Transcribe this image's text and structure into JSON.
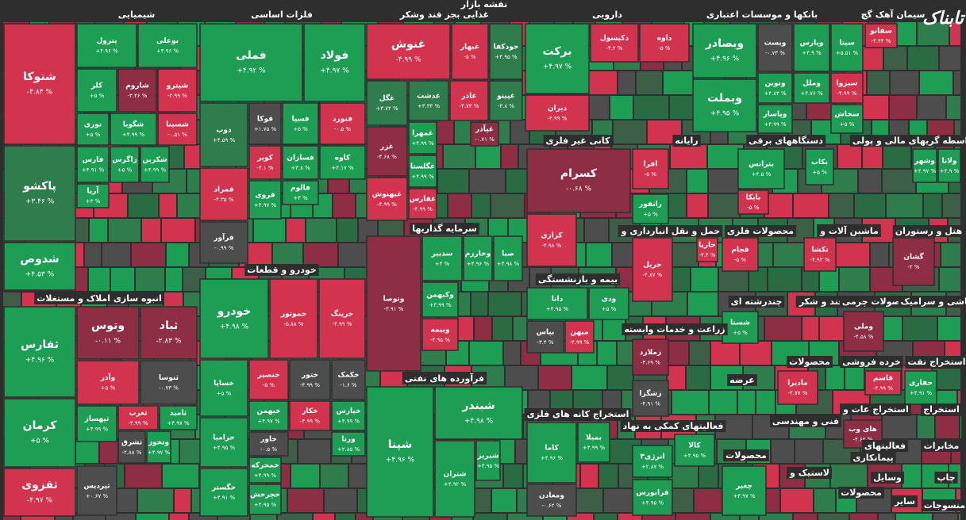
{
  "title": "نقشه بازار",
  "logo": "تابناک",
  "sectors": [
    {
      "name": "شیمیایی",
      "tiles": [
        {
          "name": "شتوکا",
          "change": "-۴.۸۴ %",
          "color": "#d2344f"
        },
        {
          "name": "پاکشو",
          "change": "+۳.۴۶ %",
          "color": "#2f7d4c"
        },
        {
          "name": "شدوص",
          "change": "+۴.۵۳ %",
          "color": "#1e9e55"
        },
        {
          "name": "پترول",
          "change": "+۴.۹۶ %",
          "color": "#1e9e55"
        },
        {
          "name": "بوعلی",
          "change": "+۴.۹۶ %",
          "color": "#1e9e55"
        },
        {
          "name": "کلر",
          "change": "+۵ %",
          "color": "#1e9e55"
        },
        {
          "name": "شاروم",
          "change": "-۳.۴۶ %",
          "color": "#8e2e45"
        },
        {
          "name": "شپترو",
          "change": "-۲.۹۹ %",
          "color": "#d2344f"
        },
        {
          "name": "نوری",
          "change": "+۵ %",
          "color": "#1e9e55"
        },
        {
          "name": "شگویا",
          "change": "+۴.۹۹ %",
          "color": "#1e9e55"
        },
        {
          "name": "شسینا",
          "change": "-۰.۵۱ %",
          "color": "#d2344f"
        },
        {
          "name": "فارس",
          "change": "+۴.۹۱ %",
          "color": "#1e9e55"
        },
        {
          "name": "زاگرس",
          "change": "+۵ %",
          "color": "#1e9e55"
        },
        {
          "name": "شکربن",
          "change": "+۴.۹۹ %",
          "color": "#1e9e55"
        },
        {
          "name": "آریا",
          "change": "+۳ %",
          "color": "#1e9e55"
        }
      ]
    },
    {
      "name": "انبوه سازی املاک و مستغلات",
      "tiles": [
        {
          "name": "ثفارس",
          "change": "+۴.۹۶ %",
          "color": "#1e9e55"
        },
        {
          "name": "کرمان",
          "change": "+۵ %",
          "color": "#1e9e55"
        },
        {
          "name": "ثقزوی",
          "change": "-۴.۹۷ %",
          "color": "#d2344f"
        },
        {
          "name": "وتوس",
          "change": "-۰.۱۱ %",
          "color": "#8e2e45"
        },
        {
          "name": "ثباد",
          "change": "-۲.۸۳ %",
          "color": "#8e2e45"
        },
        {
          "name": "وآذر",
          "change": "+۵ %",
          "color": "#d2344f"
        },
        {
          "name": "ثنوسا",
          "change": "-۰.۷۳ %",
          "color": "#4d4d4d"
        },
        {
          "name": "ثپهساز",
          "change": "+۴.۹۹ %",
          "color": "#1e9e55"
        },
        {
          "name": "ثغرب",
          "change": "-۴.۹۹ %",
          "color": "#d2344f"
        },
        {
          "name": "ثامید",
          "change": "+۴.۹۷ %",
          "color": "#1e9e55"
        },
        {
          "name": "ثشرق",
          "change": "-۲.۸۸ %",
          "color": "#4d4d4d"
        },
        {
          "name": "وتخوز",
          "change": "+۴.۹۷ %",
          "color": "#1e9e55"
        },
        {
          "name": "ثپردیس",
          "change": "+۰.۶۷ %",
          "color": "#4d4d4d"
        }
      ]
    },
    {
      "name": "فلزات اساسی",
      "tiles": [
        {
          "name": "فملی",
          "change": "+۴.۹۲ %",
          "color": "#1e9e55"
        },
        {
          "name": "فولاد",
          "change": "+۴.۹۷ %",
          "color": "#1e9e55"
        },
        {
          "name": "ذوب",
          "change": "+۴.۵۹ %",
          "color": "#2f7d4c"
        },
        {
          "name": "فوکا",
          "change": "+۱.۷۵ %",
          "color": "#4d4d4d"
        },
        {
          "name": "فسپا",
          "change": "+۵ %",
          "color": "#1e9e55"
        },
        {
          "name": "فنورد",
          "change": "-۰.۵ %",
          "color": "#d2344f"
        },
        {
          "name": "کویر",
          "change": "-۴.۱ %",
          "color": "#d2344f"
        },
        {
          "name": "فسازان",
          "change": "+۳.۸ %",
          "color": "#1e9e55"
        },
        {
          "name": "کاوه",
          "change": "+۴.۱۷ %",
          "color": "#1e9e55"
        },
        {
          "name": "فمراد",
          "change": "-۴.۳۵ %",
          "color": "#d2344f"
        },
        {
          "name": "فروی",
          "change": "+۴.۹۷ %",
          "color": "#1e9e55"
        },
        {
          "name": "فالوم",
          "change": "+۳ %",
          "color": "#1e9e55"
        },
        {
          "name": "فرآور",
          "change": "-۰.۹۹ %",
          "color": "#4d4d4d"
        }
      ]
    },
    {
      "name": "خودرو و قطعات",
      "tiles": [
        {
          "name": "خودرو",
          "change": "+۴.۹۸ %",
          "color": "#1e9e55"
        },
        {
          "name": "خموتور",
          "change": "-۵.۸۸ %",
          "color": "#d2344f"
        },
        {
          "name": "خرینگ",
          "change": "-۴.۹۹ %",
          "color": "#d2344f"
        },
        {
          "name": "خساپا",
          "change": "+۵ %",
          "color": "#1e9e55"
        },
        {
          "name": "خنصیر",
          "change": "-۵ %",
          "color": "#d2344f"
        },
        {
          "name": "ختور",
          "change": "-۴.۹۹ %",
          "color": "#4d4d4d"
        },
        {
          "name": "خکمک",
          "change": "-۱.۶ %",
          "color": "#4d4d4d"
        },
        {
          "name": "خبهمن",
          "change": "+۴.۹۷ %",
          "color": "#1e9e55"
        },
        {
          "name": "خکار",
          "change": "-۴.۹۹ %",
          "color": "#d2344f"
        },
        {
          "name": "خپارس",
          "change": "+۴.۹۹ %",
          "color": "#1e9e55"
        },
        {
          "name": "خزامیا",
          "change": "+۴.۹۵ %",
          "color": "#1e9e55"
        },
        {
          "name": "خاور",
          "change": "-۰.۵ %",
          "color": "#4d4d4d"
        },
        {
          "name": "ورنا",
          "change": "+۲.۸۵ %",
          "color": "#1e9e55"
        },
        {
          "name": "خمحرکه",
          "change": "+۴.۹۹ %",
          "color": "#1e9e55"
        },
        {
          "name": "خچرخش",
          "change": "+۴.۹۵ %",
          "color": "#1e9e55"
        },
        {
          "name": "خگستر",
          "change": "+۴.۹۱ %",
          "color": "#1e9e55"
        }
      ]
    },
    {
      "name": "غذایی بجز قند وشکر",
      "tiles": [
        {
          "name": "غنوش",
          "change": "-۴.۹۹ %",
          "color": "#d2344f"
        },
        {
          "name": "غبهار",
          "change": "-۵ %",
          "color": "#d2344f"
        },
        {
          "name": "خودکفا",
          "change": "+۴.۹۵ %",
          "color": "#2f7d4c"
        },
        {
          "name": "غگل",
          "change": "+۳.۷۲ %",
          "color": "#2f7d4c"
        },
        {
          "name": "غدشت",
          "change": "+۳.۳۳ %",
          "color": "#2f7d4c"
        },
        {
          "name": "غاذر",
          "change": "-۴.۷۳ %",
          "color": "#d2344f"
        },
        {
          "name": "غپینو",
          "change": "-۳.۸ %",
          "color": "#2f7d4c"
        },
        {
          "name": "غمهرا",
          "change": "+۴.۹۹ %",
          "color": "#1e9e55"
        },
        {
          "name": "غپآذر",
          "change": "-۰.۷۱ %",
          "color": "#8e2e45"
        },
        {
          "name": "غزر",
          "change": "-۴.۶۸ %",
          "color": "#8e2e45"
        },
        {
          "name": "غگلستا",
          "change": "+۴.۹۹ %",
          "color": "#1e9e55"
        },
        {
          "name": "غبهنوش",
          "change": "-۴.۹۹ %",
          "color": "#d2344f"
        },
        {
          "name": "غفارس",
          "change": "-۴.۹۹ %",
          "color": "#d2344f"
        }
      ]
    },
    {
      "name": "سرمایه گذاریها",
      "tiles": [
        {
          "name": "وتوصا",
          "change": "-۳.۹۱ %",
          "color": "#8e2e45"
        },
        {
          "name": "سدبیر",
          "change": "+۴ %",
          "color": "#1e9e55"
        },
        {
          "name": "وخارزم",
          "change": "+۴.۹۶ %",
          "color": "#1e9e55"
        },
        {
          "name": "صبا",
          "change": "+۴.۹۸ %",
          "color": "#1e9e55"
        },
        {
          "name": "وکبهمن",
          "change": "+۴.۹۹ %",
          "color": "#1e9e55"
        },
        {
          "name": "وبیمه",
          "change": "-۴.۹۵ %",
          "color": "#d2344f"
        }
      ]
    },
    {
      "name": "فرآورده های نفتی",
      "tiles": [
        {
          "name": "شپنا",
          "change": "+۴.۹۶ %",
          "color": "#1e9e55"
        },
        {
          "name": "شبندر",
          "change": "+۴.۹۸ %",
          "color": "#1e9e55"
        },
        {
          "name": "شتران",
          "change": "+۴.۹۲ %",
          "color": "#1e9e55"
        },
        {
          "name": "شبریز",
          "change": "+۴.۹۵ %",
          "color": "#1e9e55"
        }
      ]
    },
    {
      "name": "دارویی",
      "tiles": [
        {
          "name": "برکت",
          "change": "+۴.۹۷ %",
          "color": "#1e9e55"
        },
        {
          "name": "دکپسول",
          "change": "-۴.۲ %",
          "color": "#d2344f"
        },
        {
          "name": "داوه",
          "change": "-۵ %",
          "color": "#d2344f"
        },
        {
          "name": "دیران",
          "change": "-۴.۹۹ %",
          "color": "#d2344f"
        }
      ]
    },
    {
      "name": "کانی غیر فلزی",
      "tiles": [
        {
          "name": "کسرام",
          "change": "-۰.۶۸ %",
          "color": "#8e2e45"
        },
        {
          "name": "کرازی",
          "change": "-۴.۹۸ %",
          "color": "#d2344f"
        }
      ]
    },
    {
      "name": "بیمه و بازنشستگی",
      "tiles": [
        {
          "name": "دانا",
          "change": "+۴.۹۵ %",
          "color": "#1e9e55"
        },
        {
          "name": "ودی",
          "change": "+۵ %",
          "color": "#1e9e55"
        },
        {
          "name": "بپاس",
          "change": "-۳.۴ %",
          "color": "#4d4d4d"
        },
        {
          "name": "میهن",
          "change": "-۴.۹۹ %",
          "color": "#d2344f"
        }
      ]
    },
    {
      "name": "استخراج کانه های فلزی",
      "tiles": [
        {
          "name": "کاما",
          "change": "+۴.۹۶ %",
          "color": "#1e9e55"
        },
        {
          "name": "بمیلا",
          "change": "+۴.۹۹ %",
          "color": "#1e9e55"
        },
        {
          "name": "ومعادن",
          "change": "-۰.۶۲ %",
          "color": "#4d4d4d"
        }
      ]
    },
    {
      "name": "بانکها و موسسات اعتباری",
      "tiles": [
        {
          "name": "وبصادر",
          "change": "+۴.۹۶ %",
          "color": "#1e9e55"
        },
        {
          "name": "وبست",
          "change": "-۰.۷۳ %",
          "color": "#4d4d4d"
        },
        {
          "name": "وپارس",
          "change": "+۴.۹ %",
          "color": "#1e9e55"
        },
        {
          "name": "ونوین",
          "change": "+۴.۸۴ %",
          "color": "#1e9e55"
        },
        {
          "name": "وملل",
          "change": "+۴.۷۶ %",
          "color": "#1e9e55"
        },
        {
          "name": "وبملت",
          "change": "+۴.۹۵ %",
          "color": "#1e9e55"
        },
        {
          "name": "وپاسار",
          "change": "+۴.۹۹ %",
          "color": "#1e9e55"
        }
      ]
    },
    {
      "name": "سیمان آهک گچ",
      "tiles": [
        {
          "name": "سیتا",
          "change": "+۵.۵۱ %",
          "color": "#1e9e55"
        },
        {
          "name": "سفانو",
          "change": "-۳.۴۴ %",
          "color": "#d2344f"
        },
        {
          "name": "سبزوا",
          "change": "-۴.۹۹ %",
          "color": "#d2344f"
        },
        {
          "name": "سخاش",
          "change": "+۵ %",
          "color": "#1e9e55"
        }
      ]
    },
    {
      "name": "رایانه",
      "tiles": [
        {
          "name": "افرا",
          "change": "-۵ %",
          "color": "#d2344f"
        },
        {
          "name": "رانفور",
          "change": "+۵ %",
          "color": "#1e9e55"
        }
      ]
    },
    {
      "name": "دستگاههای برقی",
      "tiles": [
        {
          "name": "بترانس",
          "change": "+۴.۵ %",
          "color": "#1e9e55"
        },
        {
          "name": "بایکا",
          "change": "-۵ %",
          "color": "#d2344f"
        },
        {
          "name": "بکاب",
          "change": "+۵ %",
          "color": "#1e9e55"
        }
      ]
    },
    {
      "name": "واسطه گریهای مالی و پولی",
      "tiles": [
        {
          "name": "وشهر",
          "change": "+۴.۹۷ %",
          "color": "#1e9e55"
        },
        {
          "name": "ولانا",
          "change": "+۴.۹ %",
          "color": "#1e9e55"
        }
      ]
    },
    {
      "name": "حمل و نقل انبارداری و",
      "tiles": [
        {
          "name": "حریل",
          "change": "-۴.۸۷ %",
          "color": "#d2344f"
        },
        {
          "name": "حاریا",
          "change": "-۴.۴ %",
          "color": "#d2344f"
        }
      ]
    },
    {
      "name": "محصولات فلزی",
      "tiles": [
        {
          "name": "فجام",
          "change": "-۵ %",
          "color": "#d2344f"
        }
      ]
    },
    {
      "name": "ماشین آلات و",
      "tiles": [
        {
          "name": "تکشا",
          "change": "-۴.۹۳ %",
          "color": "#d2344f"
        }
      ]
    },
    {
      "name": "هتل و رستوران",
      "tiles": [
        {
          "name": "گشان",
          "change": "-۲ %",
          "color": "#8e2e45"
        }
      ]
    },
    {
      "name": "زراعت و خدمات وابسته",
      "tiles": [
        {
          "name": "زملارد",
          "change": "-۳.۶۹ %",
          "color": "#8e2e45"
        },
        {
          "name": "زشگزا",
          "change": "-۴.۹۱ %",
          "color": "#4d4d4d"
        }
      ]
    },
    {
      "name": "چندرشته ای",
      "tiles": [
        {
          "name": "شستا",
          "change": "+۵ %",
          "color": "#1e9e55"
        }
      ]
    },
    {
      "name": "قند و شکر",
      "tiles": []
    },
    {
      "name": "محصولات چرمی",
      "tiles": [
        {
          "name": "وملی",
          "change": "-۴.۵۸ %",
          "color": "#8e2e45"
        }
      ]
    },
    {
      "name": "کاشی و سرامیک",
      "tiles": []
    },
    {
      "name": "فعالیتهای کمکی به نهاد",
      "tiles": [
        {
          "name": "انرژی۳",
          "change": "+۲.۸۷ %",
          "color": "#1e9e55"
        },
        {
          "name": "کالا",
          "change": "+۴.۹۵ %",
          "color": "#1e9e55"
        },
        {
          "name": "فرابورس",
          "change": "+۴.۹۵ %",
          "color": "#1e9e55"
        }
      ]
    },
    {
      "name": "محصولات",
      "tiles": [
        {
          "name": "مادیرا",
          "change": "-۴.۷۷ %",
          "color": "#d2344f"
        }
      ]
    },
    {
      "name": "خرده فروشی",
      "tiles": [
        {
          "name": "قاسم",
          "change": "-۴.۹۹ %",
          "color": "#d2344f"
        }
      ]
    },
    {
      "name": "استخراج نفت",
      "tiles": [
        {
          "name": "حفاری",
          "change": "+۴.۹۱ %",
          "color": "#1e9e55"
        }
      ]
    },
    {
      "name": "عرضه",
      "tiles": []
    },
    {
      "name": "فنی و مهندسی",
      "tiles": []
    },
    {
      "name": "اطلاعات و",
      "tiles": [
        {
          "name": "های وب",
          "change": "-۴.۶۲ %",
          "color": "#8e2e45"
        }
      ]
    },
    {
      "name": "استخراج",
      "tiles": []
    },
    {
      "name": "استخراج",
      "tiles": []
    },
    {
      "name": "فعالیتهای",
      "tiles": []
    },
    {
      "name": "مخابرات",
      "tiles": []
    },
    {
      "name": "محصولات",
      "tiles": [
        {
          "name": "چغیر",
          "change": "+۴.۹۷ %",
          "color": "#1e9e55"
        }
      ]
    },
    {
      "name": "پیمانکاری",
      "tiles": []
    },
    {
      "name": "لاستیک و",
      "tiles": []
    },
    {
      "name": "وسایل",
      "tiles": []
    },
    {
      "name": "چاپ",
      "tiles": []
    },
    {
      "name": "محصولات",
      "tiles": []
    },
    {
      "name": "سایر",
      "tiles": []
    },
    {
      "name": "منسوجات",
      "tiles": []
    }
  ]
}
